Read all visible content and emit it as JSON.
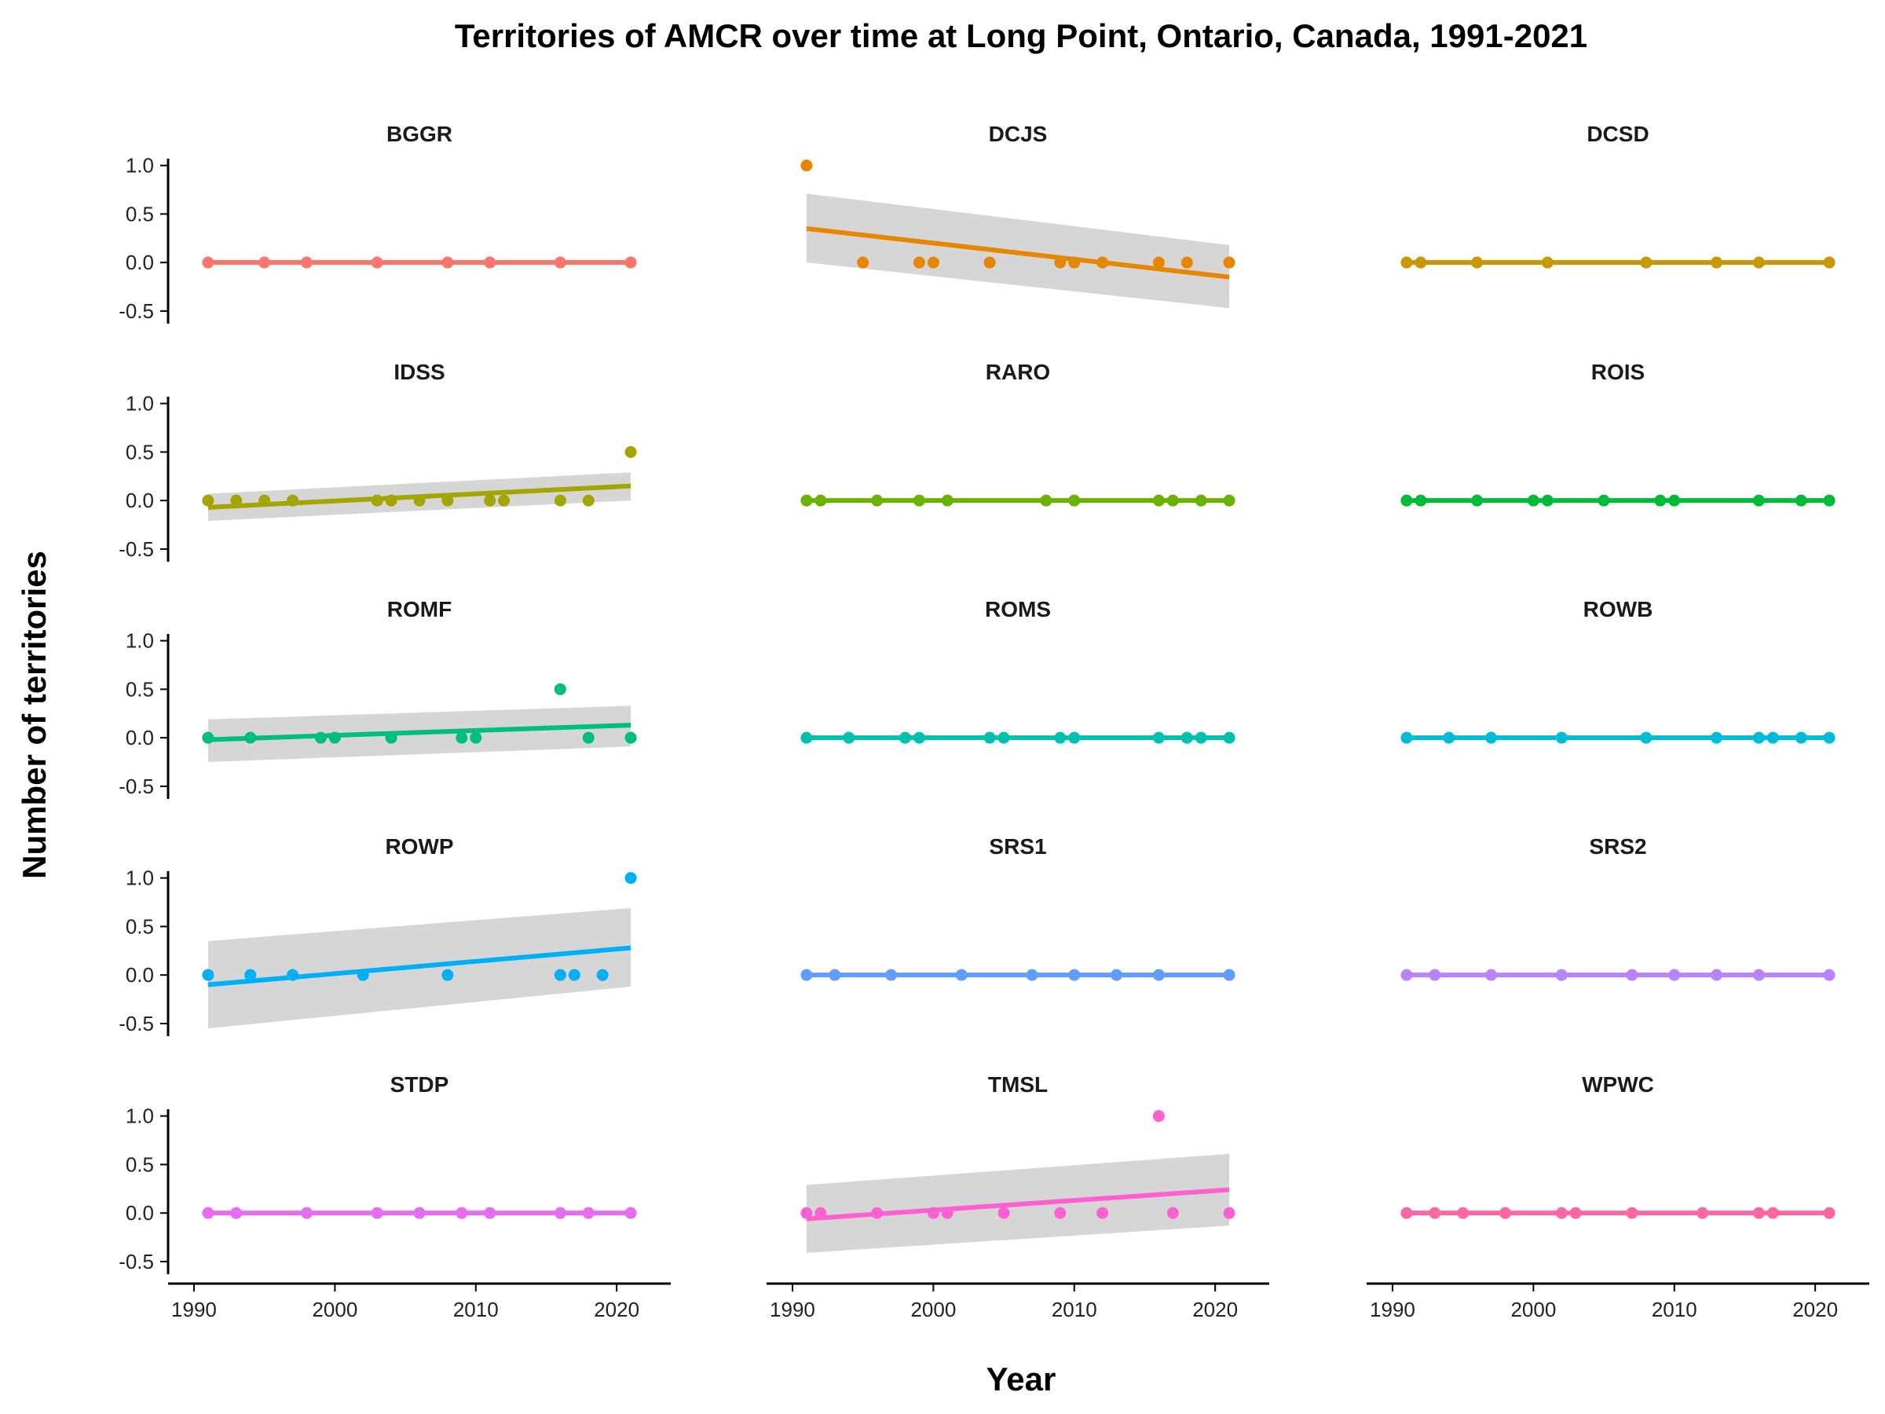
{
  "chart_data": {
    "type": "scatter",
    "title": "Territories of AMCR over time at Long Point, Ontario, Canada, 1991-2021",
    "xlabel": "Year",
    "ylabel": "Number of territories",
    "xlim": [
      1989.5,
      2022.5
    ],
    "ylim": [
      -0.63,
      1.07
    ],
    "x_ticks": [
      1990,
      2000,
      2010,
      2020
    ],
    "y_ticks": [
      -0.5,
      0.0,
      0.5,
      1.0
    ],
    "y_tick_labels": [
      "-0.5",
      "0.0",
      "0.5",
      "1.0"
    ],
    "grid": false,
    "legend": "none",
    "layout": {
      "rows": 5,
      "cols": 3
    },
    "panels": [
      {
        "name": "BGGR",
        "color": "#F8766D",
        "x": [
          1991,
          1995,
          1998,
          2003,
          2008,
          2011,
          2016,
          2021
        ],
        "y": [
          0,
          0,
          0,
          0,
          0,
          0,
          0,
          0
        ],
        "fit": [
          0,
          0
        ],
        "ci": null
      },
      {
        "name": "DCJS",
        "color": "#E58700",
        "x": [
          1991,
          1995,
          1999,
          2000,
          2004,
          2009,
          2010,
          2012,
          2016,
          2018,
          2021
        ],
        "y": [
          1,
          0,
          0,
          0,
          0,
          0,
          0,
          0,
          0,
          0,
          0
        ],
        "fit": [
          0.35,
          -0.15
        ],
        "ci": {
          "lower": [
            0.0,
            -0.47
          ],
          "upper": [
            0.71,
            0.18
          ]
        }
      },
      {
        "name": "DCSD",
        "color": "#C99800",
        "x": [
          1991,
          1992,
          1996,
          2001,
          2008,
          2013,
          2016,
          2021
        ],
        "y": [
          0,
          0,
          0,
          0,
          0,
          0,
          0,
          0
        ],
        "fit": [
          0,
          0
        ],
        "ci": null
      },
      {
        "name": "IDSS",
        "color": "#A3A500",
        "x": [
          1991,
          1993,
          1995,
          1997,
          2003,
          2004,
          2006,
          2008,
          2011,
          2012,
          2016,
          2018,
          2021
        ],
        "y": [
          0,
          0,
          0,
          0,
          0,
          0,
          0,
          0,
          0,
          0,
          0,
          0,
          0.5
        ],
        "fit": [
          -0.07,
          0.15
        ],
        "ci": {
          "lower": [
            -0.21,
            0.0
          ],
          "upper": [
            0.07,
            0.29
          ]
        }
      },
      {
        "name": "RARO",
        "color": "#6BB100",
        "x": [
          1991,
          1992,
          1996,
          1999,
          2001,
          2008,
          2010,
          2016,
          2017,
          2019,
          2021
        ],
        "y": [
          0,
          0,
          0,
          0,
          0,
          0,
          0,
          0,
          0,
          0,
          0
        ],
        "fit": [
          0,
          0
        ],
        "ci": null
      },
      {
        "name": "ROIS",
        "color": "#00BA38",
        "x": [
          1991,
          1992,
          1996,
          2000,
          2001,
          2005,
          2009,
          2010,
          2016,
          2019,
          2021
        ],
        "y": [
          0,
          0,
          0,
          0,
          0,
          0,
          0,
          0,
          0,
          0,
          0
        ],
        "fit": [
          0,
          0
        ],
        "ci": null
      },
      {
        "name": "ROMF",
        "color": "#00BF7D",
        "x": [
          1991,
          1994,
          1999,
          2000,
          2004,
          2009,
          2010,
          2016,
          2018,
          2021
        ],
        "y": [
          0,
          0,
          0,
          0,
          0,
          0,
          0,
          0.5,
          0,
          0
        ],
        "fit": [
          -0.02,
          0.13
        ],
        "ci": {
          "lower": [
            -0.25,
            -0.09
          ],
          "upper": [
            0.19,
            0.33
          ]
        }
      },
      {
        "name": "ROMS",
        "color": "#00C0AF",
        "x": [
          1991,
          1994,
          1998,
          1999,
          2004,
          2005,
          2009,
          2010,
          2016,
          2018,
          2019,
          2021
        ],
        "y": [
          0,
          0,
          0,
          0,
          0,
          0,
          0,
          0,
          0,
          0,
          0,
          0
        ],
        "fit": [
          0,
          0
        ],
        "ci": null
      },
      {
        "name": "ROWB",
        "color": "#00BCD8",
        "x": [
          1991,
          1994,
          1997,
          2002,
          2008,
          2013,
          2016,
          2017,
          2019,
          2021
        ],
        "y": [
          0,
          0,
          0,
          0,
          0,
          0,
          0,
          0,
          0,
          0
        ],
        "fit": [
          0,
          0
        ],
        "ci": null
      },
      {
        "name": "ROWP",
        "color": "#00B0F6",
        "x": [
          1991,
          1994,
          1997,
          2002,
          2008,
          2016,
          2017,
          2019,
          2021
        ],
        "y": [
          0,
          0,
          0,
          0,
          0,
          0,
          0,
          0,
          1
        ],
        "fit": [
          -0.1,
          0.28
        ],
        "ci": {
          "lower": [
            -0.55,
            -0.12
          ],
          "upper": [
            0.35,
            0.69
          ]
        }
      },
      {
        "name": "SRS1",
        "color": "#619CFF",
        "x": [
          1991,
          1993,
          1997,
          2002,
          2007,
          2010,
          2013,
          2016,
          2021
        ],
        "y": [
          0,
          0,
          0,
          0,
          0,
          0,
          0,
          0,
          0
        ],
        "fit": [
          0,
          0
        ],
        "ci": null
      },
      {
        "name": "SRS2",
        "color": "#B983FF",
        "x": [
          1991,
          1993,
          1997,
          2002,
          2007,
          2010,
          2013,
          2016,
          2021
        ],
        "y": [
          0,
          0,
          0,
          0,
          0,
          0,
          0,
          0,
          0
        ],
        "fit": [
          0,
          0
        ],
        "ci": null
      },
      {
        "name": "STDP",
        "color": "#E76BF3",
        "x": [
          1991,
          1993,
          1998,
          2003,
          2006,
          2009,
          2011,
          2016,
          2018,
          2021
        ],
        "y": [
          0,
          0,
          0,
          0,
          0,
          0,
          0,
          0,
          0,
          0
        ],
        "fit": [
          0,
          0
        ],
        "ci": null
      },
      {
        "name": "TMSL",
        "color": "#FD61D1",
        "x": [
          1991,
          1992,
          1996,
          2000,
          2001,
          2005,
          2009,
          2012,
          2016,
          2017,
          2021
        ],
        "y": [
          0,
          0,
          0,
          0,
          0,
          0,
          0,
          0,
          1,
          0,
          0
        ],
        "fit": [
          -0.06,
          0.24
        ],
        "ci": {
          "lower": [
            -0.41,
            -0.13
          ],
          "upper": [
            0.29,
            0.61
          ]
        }
      },
      {
        "name": "WPWC",
        "color": "#FF67A4",
        "x": [
          1991,
          1993,
          1995,
          1998,
          2002,
          2003,
          2007,
          2012,
          2016,
          2017,
          2021
        ],
        "y": [
          0,
          0,
          0,
          0,
          0,
          0,
          0,
          0,
          0,
          0,
          0
        ],
        "fit": [
          0,
          0
        ],
        "ci": null
      }
    ]
  }
}
